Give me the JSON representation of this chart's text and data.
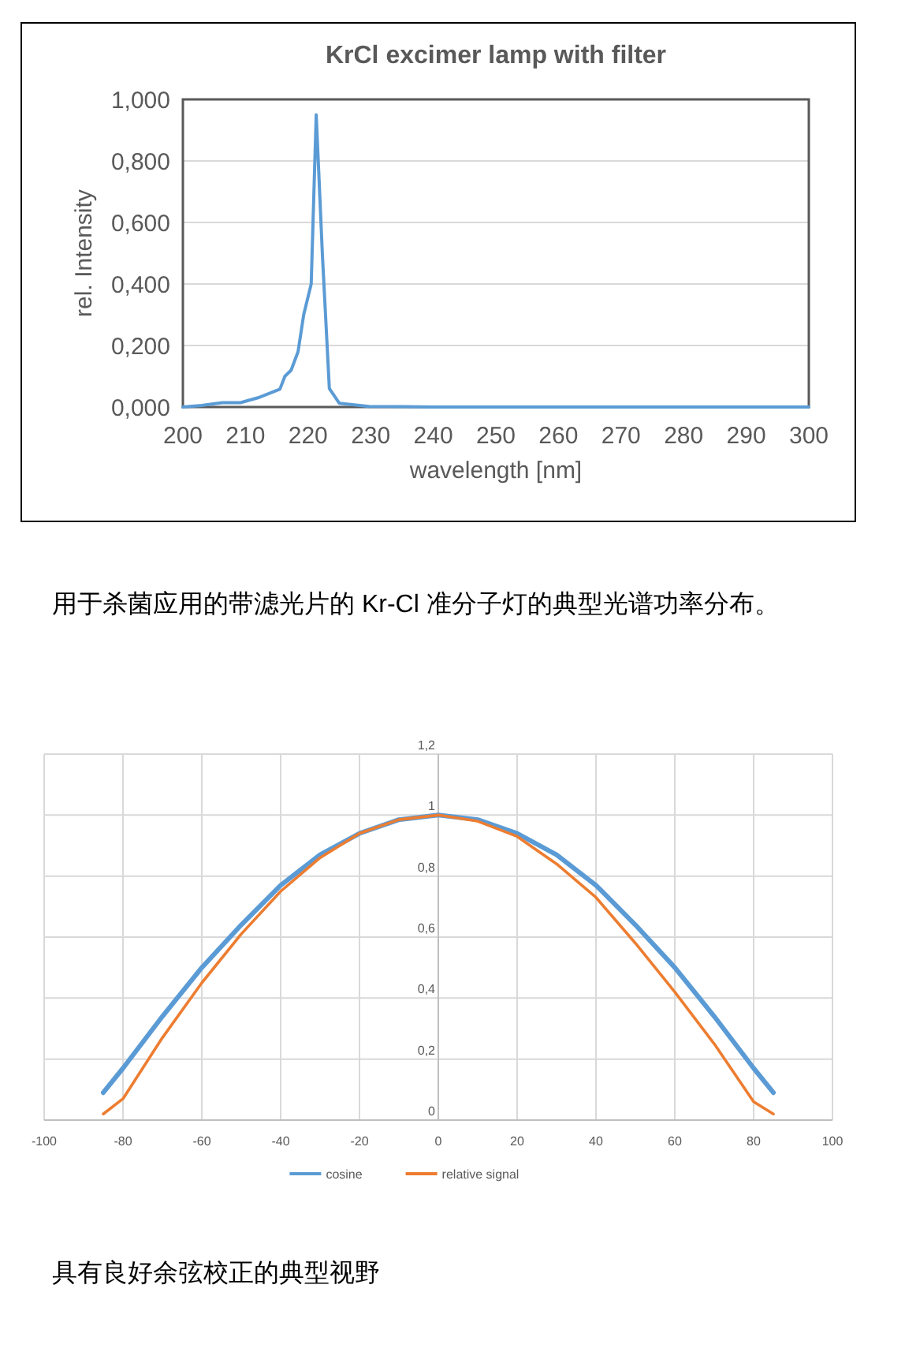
{
  "chart_data": [
    {
      "type": "line",
      "title": "KrCl excimer lamp with filter",
      "xlabel": "wavelength [nm]",
      "ylabel": "rel. Intensity",
      "xlim": [
        200,
        300
      ],
      "xticks": [
        200,
        210,
        220,
        230,
        240,
        250,
        260,
        270,
        280,
        290,
        300
      ],
      "ylim": [
        0,
        1
      ],
      "yticks": [
        {
          "value": 0,
          "label": "0,000"
        },
        {
          "value": 0.2,
          "label": "0,200"
        },
        {
          "value": 0.4,
          "label": "0,400"
        },
        {
          "value": 0.6,
          "label": "0,600"
        },
        {
          "value": 0.8,
          "label": "0,800"
        },
        {
          "value": 1,
          "label": "1,000"
        }
      ],
      "grid": "y",
      "marker": "none",
      "series": [
        {
          "color": "#5b9bd5",
          "x": [
            200,
            203,
            206.3,
            209.2,
            212,
            215.5,
            216.3,
            217.3,
            218.4,
            219.3,
            220.5,
            221.3,
            222.3,
            223.4,
            225,
            229.7,
            240,
            260,
            280,
            300
          ],
          "values": [
            0,
            0.005,
            0.014,
            0.014,
            0.03,
            0.058,
            0.1,
            0.12,
            0.18,
            0.3,
            0.4,
            0.95,
            0.49,
            0.06,
            0.012,
            0.002,
            0,
            0,
            0,
            0
          ]
        }
      ],
      "annotations": [
        "用于杀菌应用的带滤光片的 Kr-Cl 准分子灯的典型光谱功率分布。"
      ]
    },
    {
      "type": "line",
      "xlim": [
        -100,
        100
      ],
      "xticks": [
        -100,
        -80,
        -60,
        -40,
        -20,
        0,
        20,
        40,
        60,
        80,
        100
      ],
      "ylim": [
        0,
        1.2
      ],
      "yticks": [
        0,
        {
          "value": 0.2,
          "label": "0,2"
        },
        {
          "value": 0.4,
          "label": "0,4"
        },
        {
          "value": 0.6,
          "label": "0,6"
        },
        {
          "value": 0.8,
          "label": "0,8"
        },
        1,
        {
          "value": 1.2,
          "label": "1,2"
        }
      ],
      "grid": true,
      "legend": "bottom",
      "marker": "none",
      "x": [
        -85,
        -80,
        -70,
        -60,
        -50,
        -40,
        -30,
        -20,
        -10,
        0,
        10,
        20,
        30,
        40,
        50,
        60,
        70,
        80,
        85
      ],
      "series": [
        {
          "name": "cosine",
          "color": "#5b9bd5",
          "values": [
            0.09,
            0.17,
            0.34,
            0.5,
            0.64,
            0.77,
            0.87,
            0.94,
            0.985,
            1,
            0.985,
            0.94,
            0.87,
            0.77,
            0.64,
            0.5,
            0.34,
            0.17,
            0.09
          ]
        },
        {
          "name": "relative signal",
          "color": "#ed7d31",
          "values": [
            0.02,
            0.07,
            0.27,
            0.45,
            0.61,
            0.75,
            0.86,
            0.94,
            0.985,
            1,
            0.98,
            0.93,
            0.84,
            0.73,
            0.58,
            0.42,
            0.25,
            0.06,
            0.02
          ]
        }
      ],
      "annotations": [
        "具有良好余弦校正的典型视野"
      ]
    }
  ]
}
